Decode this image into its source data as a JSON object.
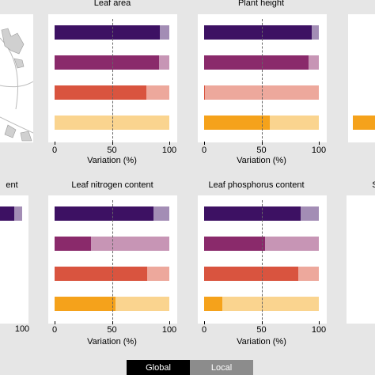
{
  "colors": {
    "page_bg": "#e6e6e6",
    "rows": [
      {
        "global": "#3d1163",
        "local": "#a38db5"
      },
      {
        "global": "#8a2a6b",
        "local": "#c795b5"
      },
      {
        "global": "#d9543f",
        "local": "#eda89c"
      },
      {
        "global": "#f5a21b",
        "local": "#fad48f"
      }
    ]
  },
  "legend": {
    "global": "Global",
    "local": "Local"
  },
  "chart_data": [
    {
      "type": "bar",
      "orientation": "horizontal",
      "stacked": true,
      "title": "",
      "xlabel": "",
      "xlim": [
        0,
        100
      ],
      "xticks": [],
      "reference_line": 50,
      "series": [
        {
          "name": "Global",
          "values": [
            null,
            null,
            null,
            null
          ]
        },
        {
          "name": "Local",
          "values": [
            null,
            null,
            null,
            null
          ]
        }
      ]
    },
    {
      "type": "bar",
      "orientation": "horizontal",
      "stacked": true,
      "title": "Leaf area",
      "xlabel": "Variation (%)",
      "xlim": [
        0,
        100
      ],
      "xticks": [
        "0",
        "50",
        "100"
      ],
      "reference_line": 50,
      "series": [
        {
          "name": "Global",
          "values": [
            92,
            91,
            80,
            0
          ]
        },
        {
          "name": "Local",
          "values": [
            8,
            9,
            20,
            100
          ]
        }
      ]
    },
    {
      "type": "bar",
      "orientation": "horizontal",
      "stacked": true,
      "title": "Plant height",
      "xlabel": "Variation (%)",
      "xlim": [
        0,
        100
      ],
      "xticks": [
        "0",
        "50",
        "100"
      ],
      "reference_line": 50,
      "series": [
        {
          "name": "Global",
          "values": [
            94,
            91,
            1,
            57
          ]
        },
        {
          "name": "Local",
          "values": [
            6,
            9,
            99,
            43
          ]
        }
      ]
    },
    {
      "type": "bar",
      "orientation": "horizontal",
      "stacked": true,
      "title": "",
      "xlabel": "",
      "xlim": [
        0,
        100
      ],
      "xticks": [],
      "reference_line": 50,
      "series": [
        {
          "name": "Global",
          "values": [
            null,
            null,
            null,
            20
          ]
        },
        {
          "name": "Local",
          "values": [
            null,
            null,
            null,
            80
          ]
        }
      ]
    },
    {
      "type": "bar",
      "orientation": "horizontal",
      "stacked": true,
      "title": "ent",
      "xlabel": "",
      "xlim": [
        0,
        100
      ],
      "xticks": [
        "100"
      ],
      "reference_line": 50,
      "series": [
        {
          "name": "Global",
          "values": [
            93,
            null,
            null,
            null
          ]
        },
        {
          "name": "Local",
          "values": [
            7,
            null,
            null,
            null
          ]
        }
      ]
    },
    {
      "type": "bar",
      "orientation": "horizontal",
      "stacked": true,
      "title": "Leaf nitrogen content",
      "xlabel": "Variation (%)",
      "xlim": [
        0,
        100
      ],
      "xticks": [
        "0",
        "50",
        "100"
      ],
      "reference_line": 50,
      "series": [
        {
          "name": "Global",
          "values": [
            86,
            32,
            81,
            53
          ]
        },
        {
          "name": "Local",
          "values": [
            14,
            68,
            19,
            47
          ]
        }
      ]
    },
    {
      "type": "bar",
      "orientation": "horizontal",
      "stacked": true,
      "title": "Leaf phosphorus content",
      "xlabel": "Variation (%)",
      "xlim": [
        0,
        100
      ],
      "xticks": [
        "0",
        "50",
        "100"
      ],
      "reference_line": 50,
      "series": [
        {
          "name": "Global",
          "values": [
            84,
            53,
            82,
            16
          ]
        },
        {
          "name": "Local",
          "values": [
            16,
            47,
            18,
            84
          ]
        }
      ]
    },
    {
      "type": "bar",
      "orientation": "horizontal",
      "stacked": true,
      "title": "S",
      "xlabel": "",
      "xlim": [
        0,
        100
      ],
      "xticks": [],
      "reference_line": 50,
      "series": [
        {
          "name": "Global",
          "values": [
            null,
            null,
            null,
            null
          ]
        },
        {
          "name": "Local",
          "values": [
            null,
            null,
            null,
            null
          ]
        }
      ]
    }
  ]
}
